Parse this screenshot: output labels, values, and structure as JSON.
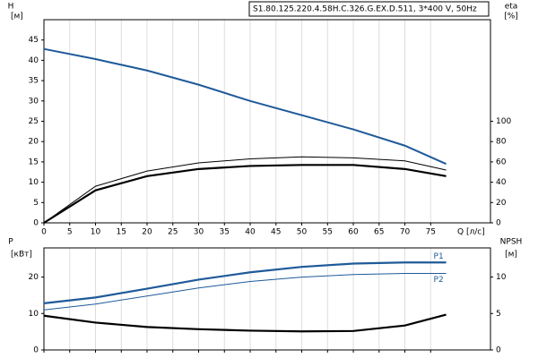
{
  "chart_data": [
    {
      "type": "line",
      "title": "S1.80.125.220.4.58H.C.326.G.EX.D.511, 3*400 V, 50Hz",
      "ylabel": "H",
      "yunit": "[м]",
      "y2label": "eta",
      "y2unit": "[%]",
      "xlabel": "Q [л/с]",
      "x": [
        0,
        10,
        20,
        30,
        40,
        50,
        60,
        70,
        78
      ],
      "xlim": [
        0,
        86.6
      ],
      "xticks": [
        0,
        5,
        10,
        15,
        20,
        25,
        30,
        35,
        40,
        45,
        50,
        55,
        60,
        65,
        70,
        75
      ],
      "ylim": [
        0,
        50
      ],
      "yticks": [
        0,
        5,
        10,
        15,
        20,
        25,
        30,
        35,
        40,
        45
      ],
      "y2lim": [
        0,
        200
      ],
      "y2ticks": [
        0,
        20,
        40,
        60,
        80,
        100
      ],
      "grid": true,
      "series": [
        {
          "color": "#1f5a99",
          "width": 2,
          "values": [
            42.8,
            40.3,
            37.5,
            34,
            30,
            26.5,
            23,
            19,
            14.5
          ]
        },
        {
          "color": "#000000",
          "width": 1,
          "axis": "y2",
          "values": [
            0,
            36,
            51,
            59,
            63,
            65,
            64,
            61,
            52
          ]
        },
        {
          "color": "#000000",
          "width": 2.2,
          "axis": "y2",
          "values": [
            0,
            32,
            46,
            53,
            56,
            57,
            57,
            53,
            46
          ]
        }
      ]
    },
    {
      "type": "line",
      "ylabel": "P",
      "yunit": "[кВт]",
      "y2label": "NPSH",
      "y2unit": "[м]",
      "x": [
        0,
        10,
        20,
        30,
        40,
        50,
        60,
        70,
        78
      ],
      "xlim": [
        0,
        86.6
      ],
      "xticks": [
        0,
        5,
        10,
        15,
        20,
        25,
        30,
        35,
        40,
        45,
        50,
        55,
        60,
        65,
        70,
        75
      ],
      "ylim": [
        0,
        28
      ],
      "yticks": [
        0,
        10,
        20
      ],
      "y2lim": [
        0,
        14
      ],
      "y2ticks": [
        0,
        5,
        10
      ],
      "grid": true,
      "series": [
        {
          "name": "P1",
          "color": "#1f5a99",
          "width": 2.2,
          "values": [
            12.8,
            14.4,
            16.8,
            19.3,
            21.3,
            22.8,
            23.7,
            24,
            24
          ]
        },
        {
          "name": "P2",
          "color": "#1f5a99",
          "width": 1,
          "values": [
            11,
            12.6,
            14.8,
            17,
            18.8,
            20,
            20.7,
            21,
            21
          ]
        },
        {
          "color": "#000000",
          "width": 2.2,
          "axis": "y2",
          "values": [
            4.7,
            3.75,
            3.15,
            2.85,
            2.65,
            2.55,
            2.6,
            3.35,
            4.85
          ]
        }
      ]
    }
  ]
}
